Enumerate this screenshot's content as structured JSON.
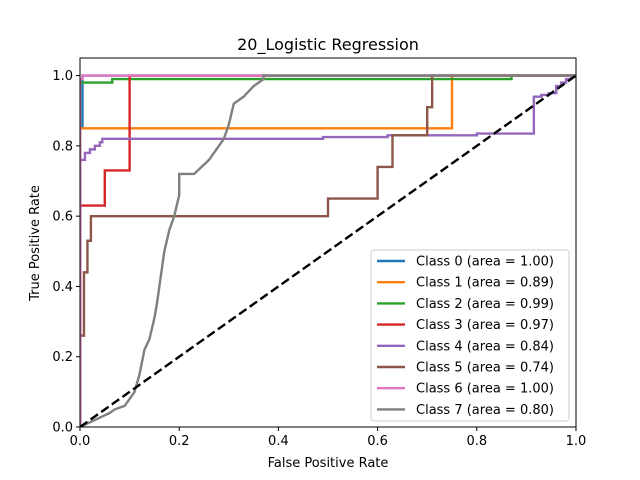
{
  "chart_data": {
    "type": "line",
    "title": "20_Logistic Regression",
    "xlabel": "False Positive Rate",
    "ylabel": "True Positive Rate",
    "xlim": [
      0.0,
      1.0
    ],
    "ylim": [
      0.0,
      1.05
    ],
    "x_ticks": [
      "0.0",
      "0.2",
      "0.4",
      "0.6",
      "0.8",
      "1.0"
    ],
    "y_ticks": [
      "0.0",
      "0.2",
      "0.4",
      "0.6",
      "0.8",
      "1.0"
    ],
    "grid": false,
    "legend_position": "lower-right",
    "series": [
      {
        "name": "Class 0 (area = 1.00)",
        "color": "#1f77b4",
        "points": [
          [
            0,
            0
          ],
          [
            0,
            0.85
          ],
          [
            0.005,
            0.85
          ],
          [
            0.005,
            1.0
          ],
          [
            1,
            1
          ]
        ]
      },
      {
        "name": "Class 1 (area = 0.89)",
        "color": "#ff7f0e",
        "points": [
          [
            0,
            0
          ],
          [
            0,
            0.85
          ],
          [
            0.75,
            0.85
          ],
          [
            0.75,
            1.0
          ],
          [
            1,
            1
          ]
        ]
      },
      {
        "name": "Class 2 (area = 0.99)",
        "color": "#2ca02c",
        "points": [
          [
            0,
            0
          ],
          [
            0,
            0.98
          ],
          [
            0.065,
            0.98
          ],
          [
            0.065,
            0.99
          ],
          [
            0.87,
            0.99
          ],
          [
            0.87,
            1.0
          ],
          [
            1,
            1
          ]
        ]
      },
      {
        "name": "Class 3 (area = 0.97)",
        "color": "#d62728",
        "points": [
          [
            0,
            0
          ],
          [
            0,
            0.63
          ],
          [
            0.05,
            0.63
          ],
          [
            0.05,
            0.73
          ],
          [
            0.1,
            0.73
          ],
          [
            0.1,
            1.0
          ],
          [
            1,
            1
          ]
        ]
      },
      {
        "name": "Class 4 (area = 0.84)",
        "color": "#9467bd",
        "points": [
          [
            0,
            0
          ],
          [
            0,
            0.76
          ],
          [
            0.01,
            0.76
          ],
          [
            0.01,
            0.78
          ],
          [
            0.02,
            0.78
          ],
          [
            0.02,
            0.79
          ],
          [
            0.03,
            0.79
          ],
          [
            0.03,
            0.8
          ],
          [
            0.04,
            0.8
          ],
          [
            0.04,
            0.81
          ],
          [
            0.045,
            0.81
          ],
          [
            0.045,
            0.82
          ],
          [
            0.49,
            0.82
          ],
          [
            0.49,
            0.825
          ],
          [
            0.62,
            0.825
          ],
          [
            0.62,
            0.83
          ],
          [
            0.8,
            0.83
          ],
          [
            0.8,
            0.835
          ],
          [
            0.915,
            0.835
          ],
          [
            0.915,
            0.94
          ],
          [
            0.93,
            0.94
          ],
          [
            0.93,
            0.945
          ],
          [
            0.945,
            0.945
          ],
          [
            0.945,
            0.95
          ],
          [
            0.96,
            0.95
          ],
          [
            0.96,
            0.97
          ],
          [
            0.97,
            0.97
          ],
          [
            0.97,
            0.98
          ],
          [
            0.98,
            0.98
          ],
          [
            0.98,
            0.99
          ],
          [
            0.99,
            0.99
          ],
          [
            0.99,
            1.0
          ],
          [
            1,
            1
          ]
        ]
      },
      {
        "name": "Class 5 (area = 0.74)",
        "color": "#8c564b",
        "points": [
          [
            0,
            0
          ],
          [
            0,
            0.26
          ],
          [
            0.008,
            0.26
          ],
          [
            0.008,
            0.44
          ],
          [
            0.015,
            0.44
          ],
          [
            0.015,
            0.53
          ],
          [
            0.022,
            0.53
          ],
          [
            0.022,
            0.6
          ],
          [
            0.5,
            0.6
          ],
          [
            0.5,
            0.65
          ],
          [
            0.6,
            0.65
          ],
          [
            0.6,
            0.74
          ],
          [
            0.63,
            0.74
          ],
          [
            0.63,
            0.83
          ],
          [
            0.7,
            0.83
          ],
          [
            0.7,
            0.91
          ],
          [
            0.71,
            0.91
          ],
          [
            0.71,
            1.0
          ],
          [
            1,
            1
          ]
        ]
      },
      {
        "name": "Class 6 (area = 1.00)",
        "color": "#e377c2",
        "points": [
          [
            0,
            0
          ],
          [
            0,
            0.99
          ],
          [
            0.005,
            0.99
          ],
          [
            0.005,
            1.0
          ],
          [
            1,
            1
          ]
        ]
      },
      {
        "name": "Class 7 (area = 0.80)",
        "color": "#7f7f7f",
        "points": [
          [
            0,
            0
          ],
          [
            0.03,
            0.02
          ],
          [
            0.06,
            0.04
          ],
          [
            0.07,
            0.05
          ],
          [
            0.09,
            0.06
          ],
          [
            0.1,
            0.08
          ],
          [
            0.11,
            0.1
          ],
          [
            0.12,
            0.15
          ],
          [
            0.13,
            0.22
          ],
          [
            0.14,
            0.25
          ],
          [
            0.15,
            0.31
          ],
          [
            0.155,
            0.35
          ],
          [
            0.16,
            0.4
          ],
          [
            0.17,
            0.5
          ],
          [
            0.18,
            0.56
          ],
          [
            0.19,
            0.6
          ],
          [
            0.2,
            0.66
          ],
          [
            0.2,
            0.72
          ],
          [
            0.23,
            0.72
          ],
          [
            0.26,
            0.76
          ],
          [
            0.29,
            0.82
          ],
          [
            0.3,
            0.86
          ],
          [
            0.31,
            0.92
          ],
          [
            0.33,
            0.94
          ],
          [
            0.35,
            0.97
          ],
          [
            0.37,
            0.99
          ],
          [
            0.37,
            1.0
          ],
          [
            1,
            1
          ]
        ]
      }
    ],
    "diagonal": {
      "color": "#000000",
      "style": "dashed",
      "points": [
        [
          0,
          0
        ],
        [
          1,
          1
        ]
      ]
    }
  }
}
